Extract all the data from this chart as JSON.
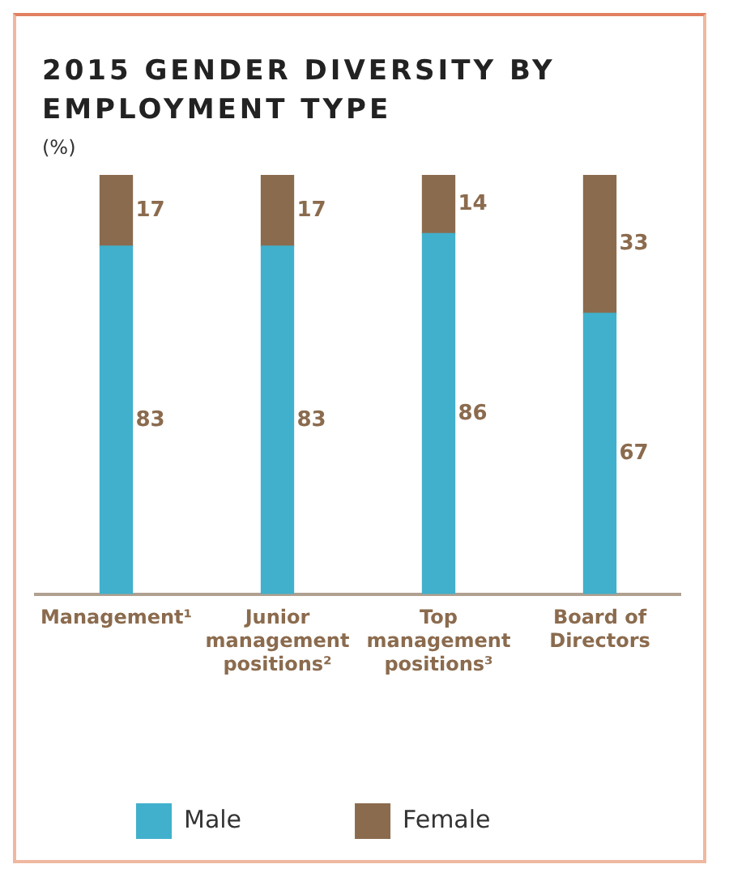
{
  "chart_data": {
    "type": "bar",
    "title": "2015 GENDER DIVERSITY BY EMPLOYMENT TYPE",
    "subtitle": "(%)",
    "categories": [
      "Management¹",
      "Junior management positions²",
      "Top management positions³",
      "Board of Directors"
    ],
    "series": [
      {
        "name": "Male",
        "color": "#41b0cc",
        "values": [
          83,
          83,
          86,
          67
        ]
      },
      {
        "name": "Female",
        "color": "#8b6b4e",
        "values": [
          17,
          17,
          14,
          33
        ]
      }
    ],
    "stacked": true,
    "tick_labels": "x",
    "data_labels": true,
    "grid": false,
    "legend": "bottom left"
  }
}
